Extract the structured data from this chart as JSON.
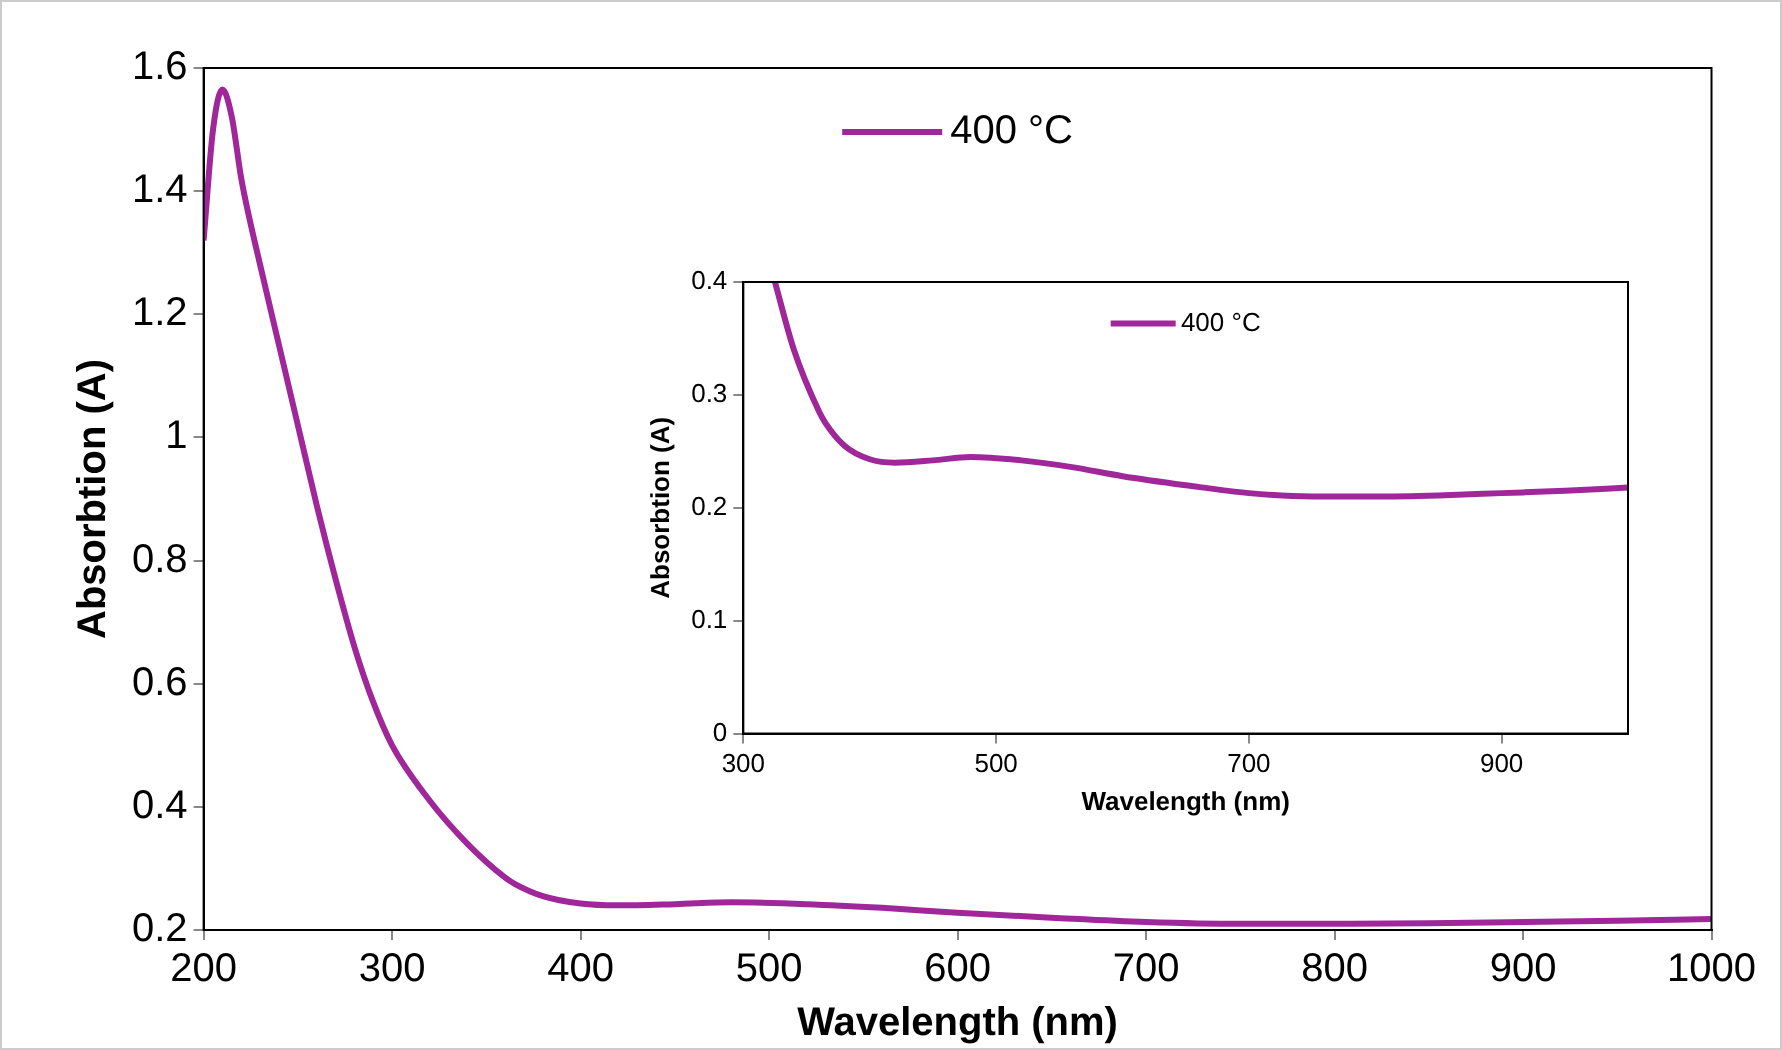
{
  "chart_data": [
    {
      "type": "line",
      "xlabel": "Wavelength (nm)",
      "ylabel": "Absorbtion (A)",
      "xlim": [
        200,
        1000
      ],
      "xticks": [
        200,
        300,
        400,
        500,
        600,
        700,
        800,
        900,
        1000
      ],
      "ylim": [
        0.2,
        1.6
      ],
      "yticks": [
        {
          "value": 0.2,
          "label": "0.2"
        },
        {
          "value": 0.4,
          "label": "0.4"
        },
        {
          "value": 0.6,
          "label": "0.6"
        },
        {
          "value": 0.8,
          "label": "0.8"
        },
        {
          "value": 1,
          "label": "1"
        },
        {
          "value": 1.2,
          "label": "1.2"
        },
        {
          "value": 1.4,
          "label": "1.4"
        },
        {
          "value": 1.6,
          "label": "1.6"
        }
      ],
      "grid": false,
      "legend": "top",
      "marker": "none",
      "line_style": "solid",
      "x": [
        200,
        205,
        210,
        215,
        220,
        230,
        240,
        250,
        260,
        270,
        280,
        290,
        300,
        320,
        340,
        360,
        365,
        380,
        400,
        420,
        450,
        480,
        520,
        560,
        600,
        650,
        700,
        750,
        800,
        850,
        900,
        950,
        1000
      ],
      "series": [
        {
          "name": "400 °C",
          "color": "#a0279a",
          "values": [
            1.32,
            1.5,
            1.565,
            1.52,
            1.42,
            1.28,
            1.15,
            1.02,
            0.89,
            0.77,
            0.66,
            0.57,
            0.5,
            0.41,
            0.34,
            0.285,
            0.275,
            0.255,
            0.243,
            0.24,
            0.242,
            0.245,
            0.242,
            0.236,
            0.228,
            0.22,
            0.213,
            0.21,
            0.21,
            0.211,
            0.213,
            0.215,
            0.218
          ]
        }
      ]
    },
    {
      "type": "line",
      "xlabel": "Wavelength (nm)",
      "ylabel": "Absorbtion (A)",
      "xlim": [
        300,
        1000
      ],
      "xticks": [
        300,
        500,
        700,
        900
      ],
      "ylim": [
        0,
        0.4
      ],
      "yticks": [
        0,
        0.1,
        0.2,
        0.3,
        0.4
      ],
      "grid": false,
      "legend": "top",
      "marker": "none",
      "line_style": "solid",
      "x": [
        325,
        340,
        360,
        365,
        380,
        400,
        420,
        450,
        480,
        520,
        560,
        600,
        650,
        700,
        750,
        800,
        850,
        900,
        950,
        1000
      ],
      "series": [
        {
          "name": "400 °C",
          "color": "#a0279a",
          "values": [
            0.4,
            0.34,
            0.285,
            0.275,
            0.255,
            0.243,
            0.24,
            0.242,
            0.245,
            0.242,
            0.236,
            0.228,
            0.22,
            0.213,
            0.21,
            0.21,
            0.211,
            0.213,
            0.215,
            0.218
          ]
        }
      ]
    }
  ]
}
